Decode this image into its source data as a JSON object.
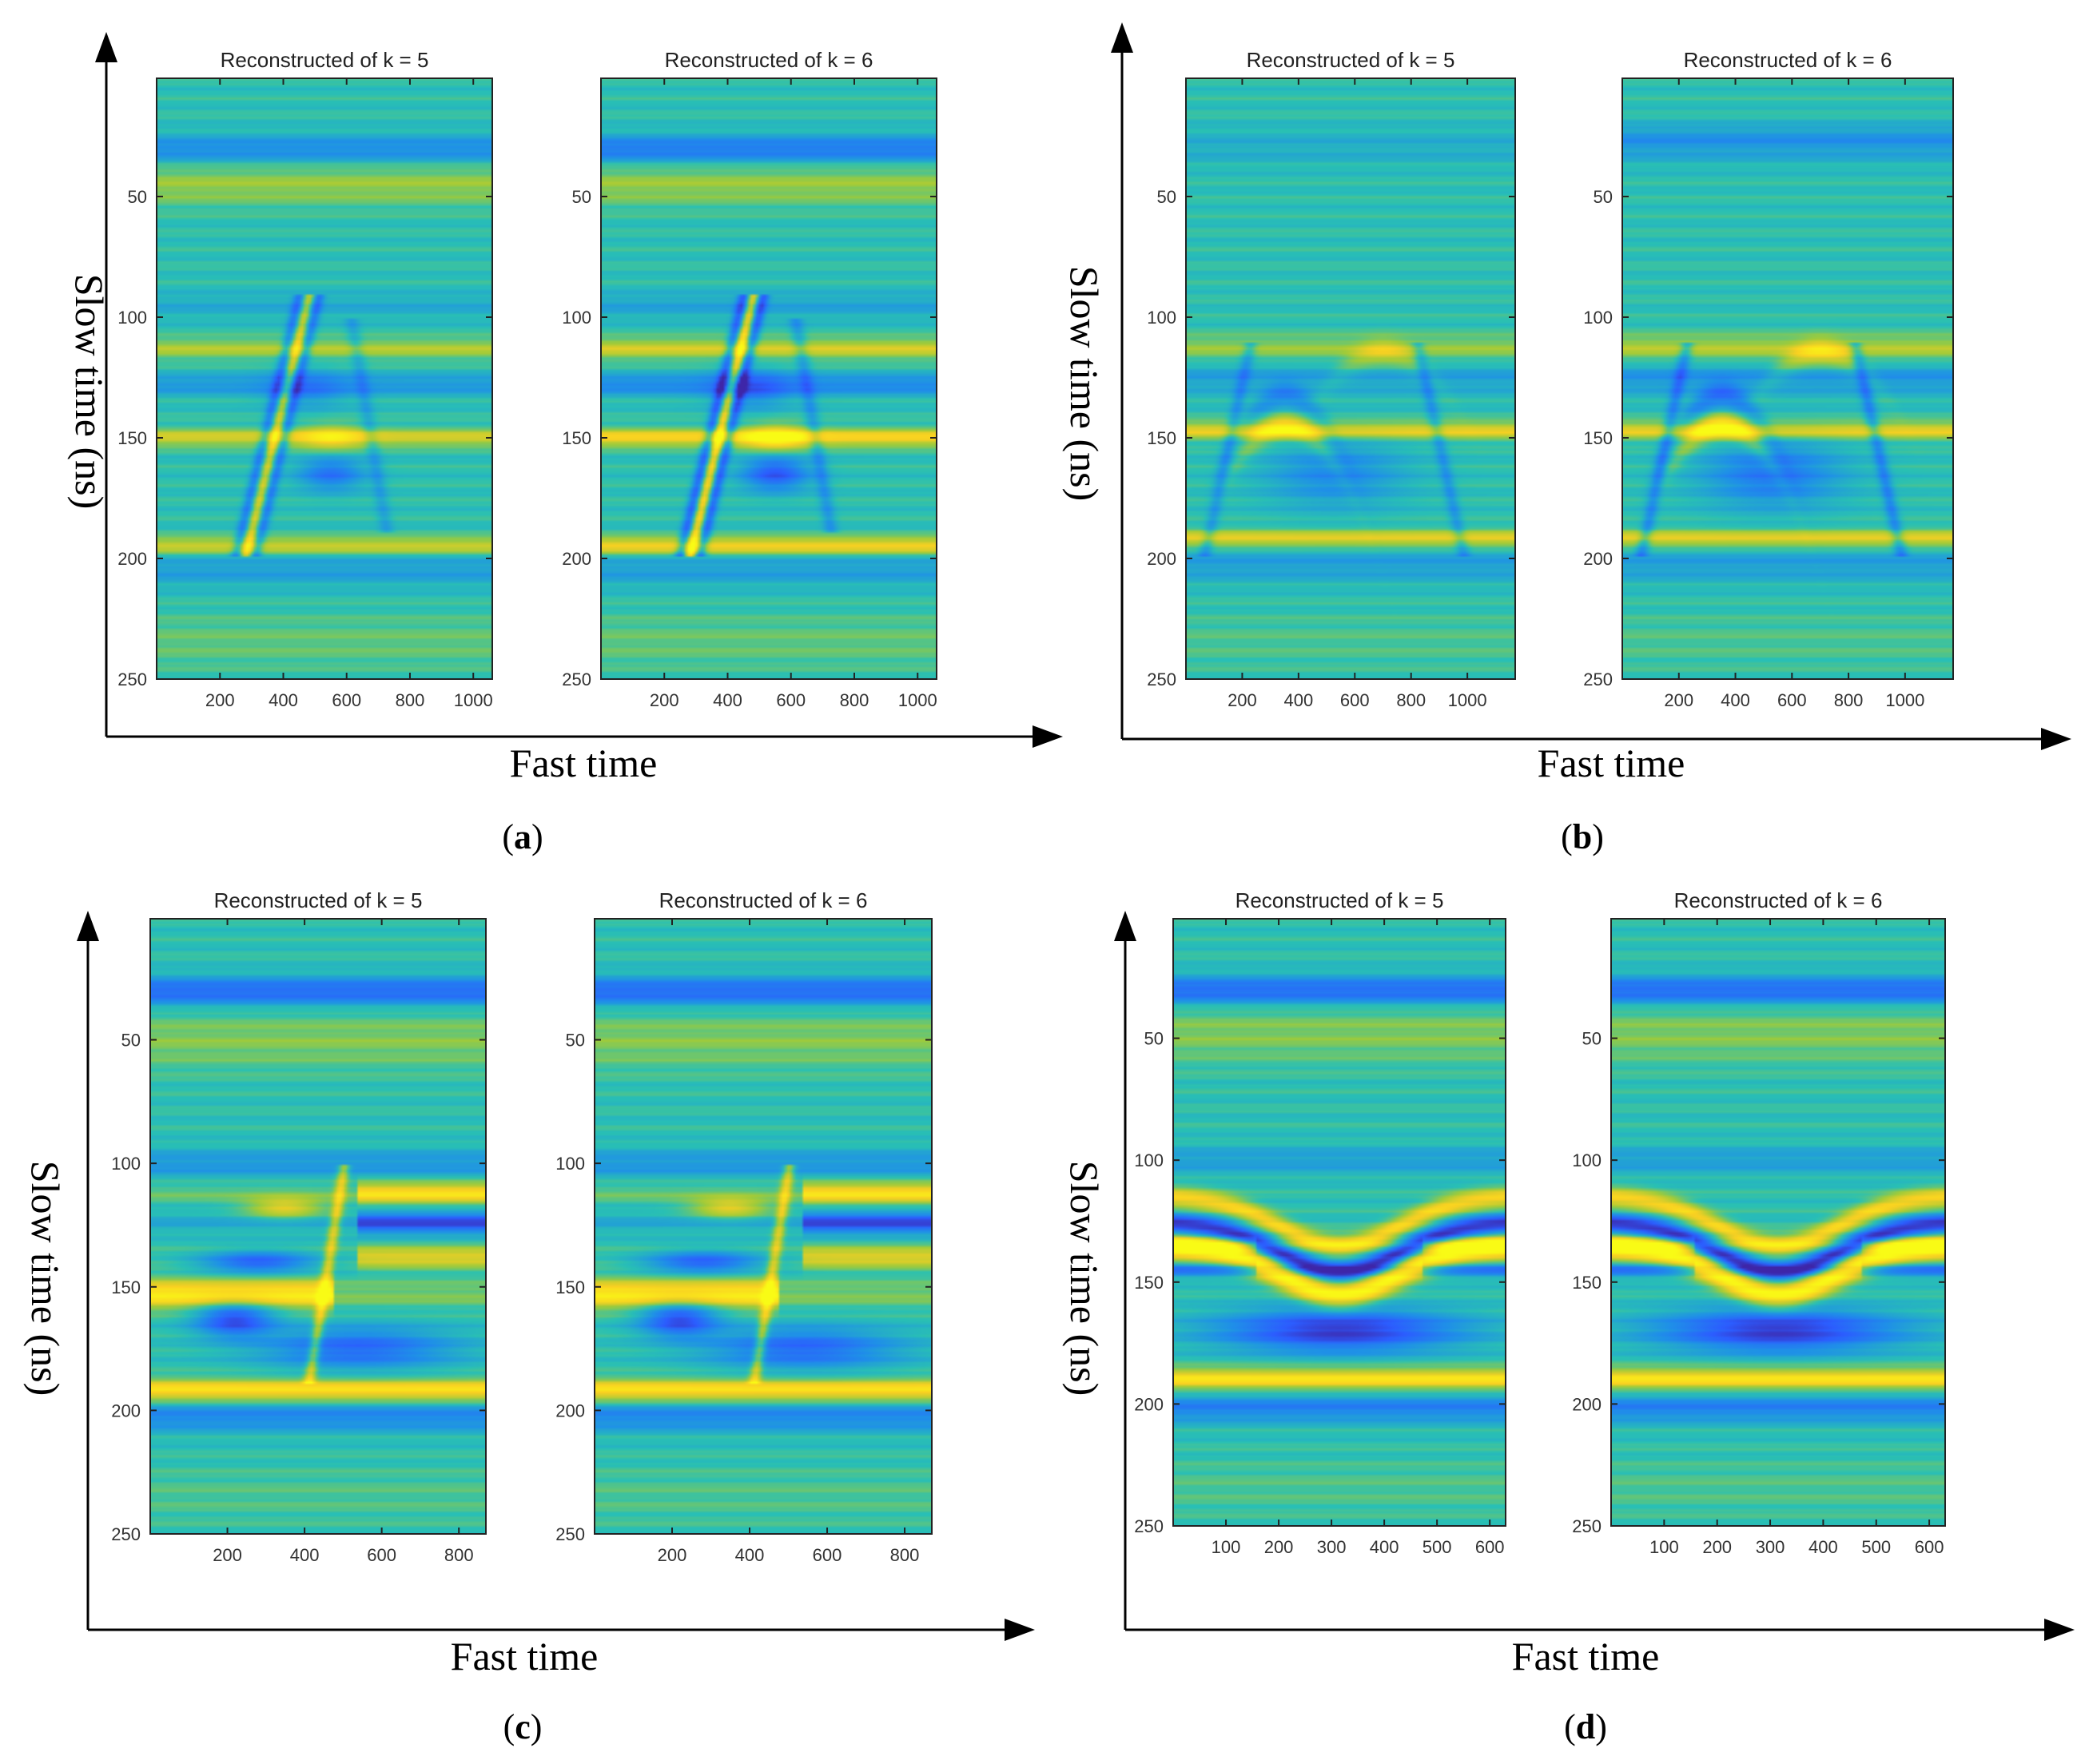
{
  "colors": {
    "background": "#ffffff",
    "axis_line": "#000000",
    "colormap": [
      "#3e26a8",
      "#2c5dff",
      "#1f90e8",
      "#29c0b4",
      "#9fcb3a",
      "#f9d022",
      "#f9fb15"
    ]
  },
  "chart_data": [
    {
      "type": "heatmap",
      "id": "a",
      "subfigure_label": "a",
      "xlabel": "Fast time",
      "ylabel": "Slow time (ns)",
      "scene": "a",
      "panels": [
        {
          "title": "Reconstructed of k = 5",
          "xlim": [
            0,
            1060
          ],
          "ylim": [
            1,
            250
          ],
          "xticks": [
            200,
            400,
            600,
            800,
            1000
          ],
          "yticks": [
            50,
            100,
            150,
            200,
            250
          ],
          "intensity": 0.75
        },
        {
          "title": "Reconstructed of k = 6",
          "xlim": [
            0,
            1060
          ],
          "ylim": [
            1,
            250
          ],
          "xticks": [
            200,
            400,
            600,
            800,
            1000
          ],
          "yticks": [
            50,
            100,
            150,
            200,
            250
          ],
          "intensity": 1.0
        }
      ]
    },
    {
      "type": "heatmap",
      "id": "b",
      "subfigure_label": "b",
      "xlabel": "Fast time",
      "ylabel": "Slow time (ns)",
      "scene": "b",
      "panels": [
        {
          "title": "Reconstructed of k = 5",
          "xlim": [
            0,
            1170
          ],
          "ylim": [
            1,
            250
          ],
          "xticks": [
            200,
            400,
            600,
            800,
            1000
          ],
          "yticks": [
            50,
            100,
            150,
            200,
            250
          ],
          "intensity": 0.75
        },
        {
          "title": "Reconstructed of k = 6",
          "xlim": [
            0,
            1170
          ],
          "ylim": [
            1,
            250
          ],
          "xticks": [
            200,
            400,
            600,
            800,
            1000
          ],
          "yticks": [
            50,
            100,
            150,
            200,
            250
          ],
          "intensity": 1.0
        }
      ]
    },
    {
      "type": "heatmap",
      "id": "c",
      "subfigure_label": "c",
      "xlabel": "Fast time",
      "ylabel": "Slow time (ns)",
      "scene": "c",
      "panels": [
        {
          "title": "Reconstructed of k = 5",
          "xlim": [
            0,
            870
          ],
          "ylim": [
            1,
            250
          ],
          "xticks": [
            200,
            400,
            600,
            800
          ],
          "yticks": [
            50,
            100,
            150,
            200,
            250
          ],
          "intensity": 1.0
        },
        {
          "title": "Reconstructed of k = 6",
          "xlim": [
            0,
            870
          ],
          "ylim": [
            1,
            250
          ],
          "xticks": [
            200,
            400,
            600,
            800
          ],
          "yticks": [
            50,
            100,
            150,
            200,
            250
          ],
          "intensity": 1.0
        }
      ]
    },
    {
      "type": "heatmap",
      "id": "d",
      "subfigure_label": "d",
      "xlabel": "Fast time",
      "ylabel": "Slow time (ns)",
      "scene": "d",
      "panels": [
        {
          "title": "Reconstructed of k = 5",
          "xlim": [
            0,
            630
          ],
          "ylim": [
            1,
            250
          ],
          "xticks": [
            100,
            200,
            300,
            400,
            500,
            600
          ],
          "yticks": [
            50,
            100,
            150,
            200,
            250
          ],
          "intensity": 1.0
        },
        {
          "title": "Reconstructed of k = 6",
          "xlim": [
            0,
            630
          ],
          "ylim": [
            1,
            250
          ],
          "xticks": [
            100,
            200,
            300,
            400,
            500,
            600
          ],
          "yticks": [
            50,
            100,
            150,
            200,
            250
          ],
          "intensity": 1.0
        }
      ]
    }
  ]
}
